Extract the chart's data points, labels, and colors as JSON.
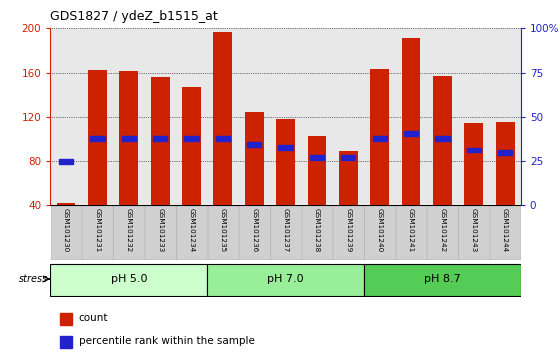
{
  "title": "GDS1827 / ydeZ_b1515_at",
  "samples": [
    "GSM101230",
    "GSM101231",
    "GSM101232",
    "GSM101233",
    "GSM101234",
    "GSM101235",
    "GSM101236",
    "GSM101237",
    "GSM101238",
    "GSM101239",
    "GSM101240",
    "GSM101241",
    "GSM101242",
    "GSM101243",
    "GSM101244"
  ],
  "count_values": [
    42,
    162,
    161,
    156,
    147,
    197,
    124,
    118,
    103,
    89,
    163,
    191,
    157,
    114,
    115
  ],
  "percentile_left": [
    80,
    100,
    100,
    100,
    100,
    100,
    95,
    92,
    83,
    83,
    100,
    105,
    100,
    90,
    88
  ],
  "groups": [
    {
      "label": "pH 5.0",
      "start": 0,
      "end": 5,
      "color": "#ccffcc"
    },
    {
      "label": "pH 7.0",
      "start": 5,
      "end": 10,
      "color": "#99ee99"
    },
    {
      "label": "pH 8.7",
      "start": 10,
      "end": 15,
      "color": "#55cc55"
    }
  ],
  "ylim_left": [
    40,
    200
  ],
  "ylim_right": [
    0,
    100
  ],
  "yticks_left": [
    40,
    80,
    120,
    160,
    200
  ],
  "yticks_right": [
    0,
    25,
    50,
    75,
    100
  ],
  "bar_color": "#cc2200",
  "blue_color": "#2222cc",
  "bar_width": 0.6,
  "plot_bg": "#e8e8e8"
}
